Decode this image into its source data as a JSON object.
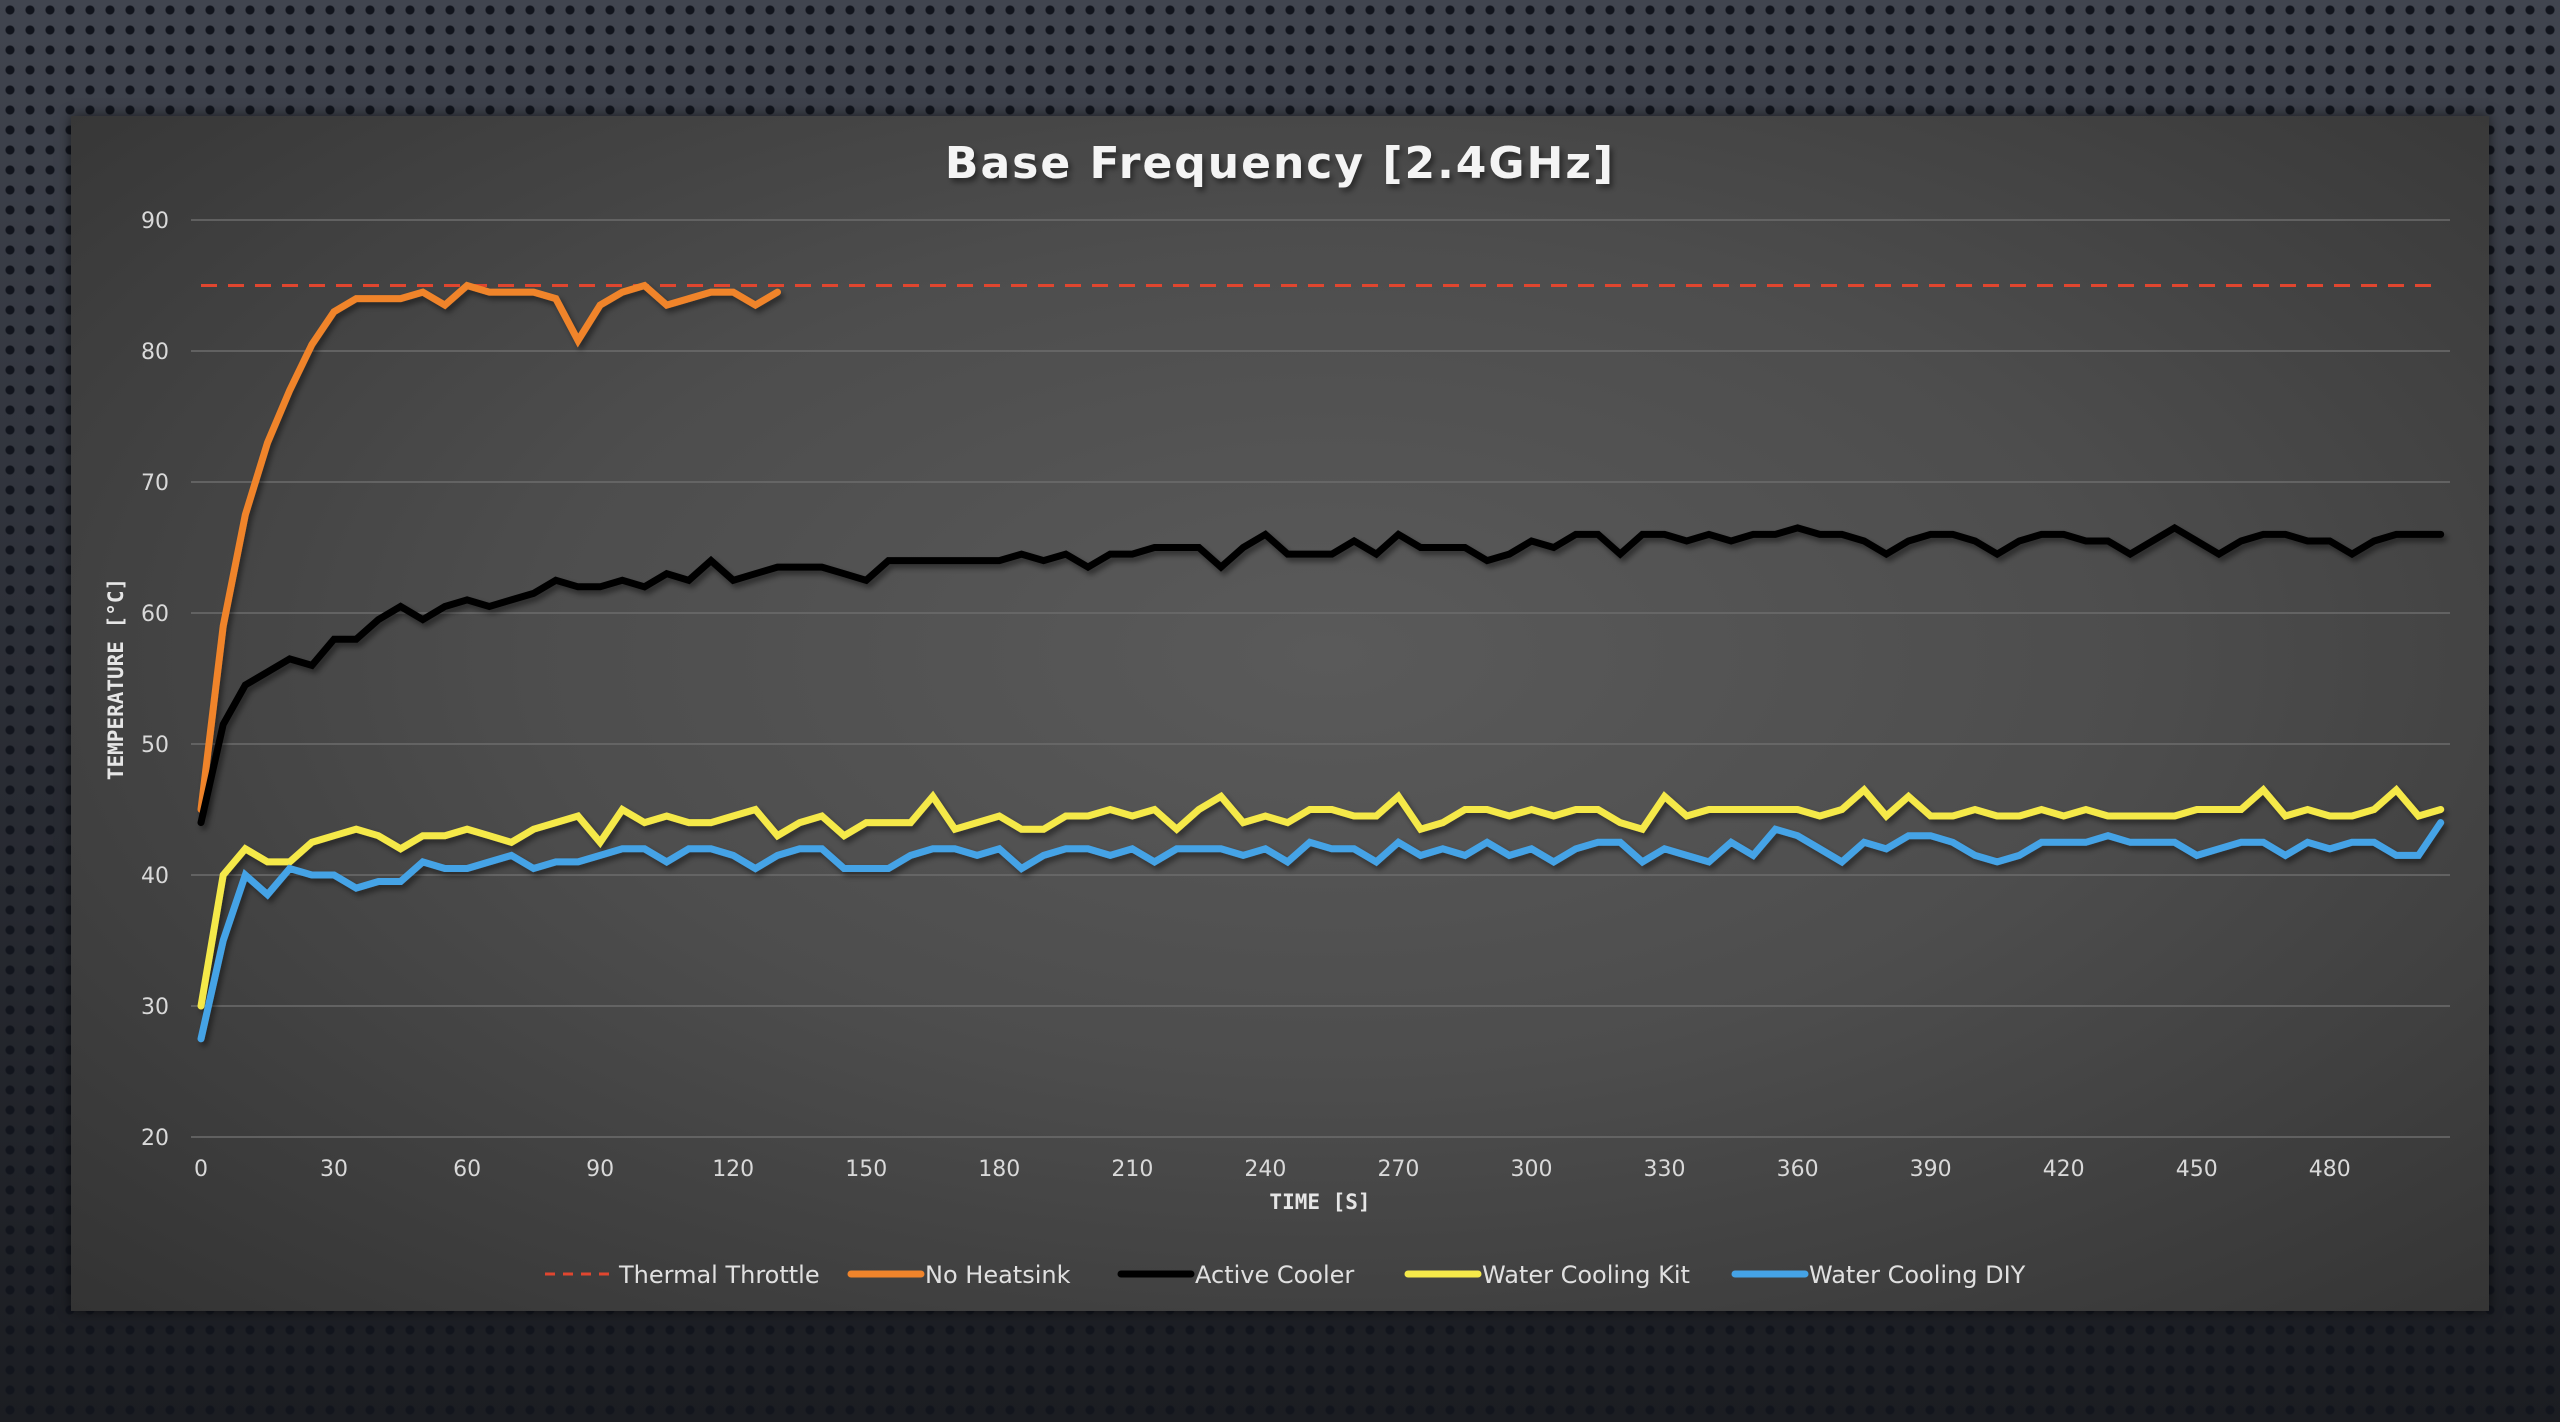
{
  "chart_data": {
    "type": "line",
    "title": "Base Frequency [2.4GHz]",
    "xlabel": "TIME [S]",
    "ylabel": "TEMPERATURE [°C]",
    "xlim": [
      0,
      505
    ],
    "ylim": [
      20,
      90
    ],
    "xticks": [
      0,
      30,
      60,
      90,
      120,
      150,
      180,
      210,
      240,
      270,
      300,
      330,
      360,
      390,
      420,
      450,
      480
    ],
    "yticks": [
      20,
      30,
      40,
      50,
      60,
      70,
      80,
      90
    ],
    "grid": true,
    "legend_position": "bottom",
    "x_step": 5,
    "series": [
      {
        "name": "Thermal Throttle",
        "color": "#e0462f",
        "style": "dashed",
        "values": [
          85,
          85
        ]
      },
      {
        "name": "No Heatsink",
        "color": "#f0842b",
        "style": "solid",
        "values": [
          45,
          59,
          67.5,
          73,
          77,
          80.5,
          83,
          84,
          84,
          84,
          84.5,
          83.5,
          85,
          84.5,
          84.5,
          84.5,
          84,
          80.8,
          83.5,
          84.5,
          85,
          83.5,
          84,
          84.5,
          84.5,
          83.5,
          84.5
        ]
      },
      {
        "name": "Active Cooler",
        "color": "#000000",
        "style": "solid",
        "values": [
          44,
          51.5,
          54.5,
          55.5,
          56.5,
          56,
          58,
          58,
          59.5,
          60.5,
          59.5,
          60.5,
          61,
          60.5,
          61,
          61.5,
          62.5,
          62,
          62,
          62.5,
          62,
          63,
          62.5,
          64,
          62.5,
          63,
          63.5,
          63.5,
          63.5,
          63,
          62.5,
          64,
          64,
          64,
          64,
          64,
          64,
          64.5,
          64,
          64.5,
          63.5,
          64.5,
          64.5,
          65,
          65,
          65,
          63.5,
          65,
          66,
          64.5,
          64.5,
          64.5,
          65.5,
          64.5,
          66,
          65,
          65,
          65,
          64,
          64.5,
          65.5,
          65,
          66,
          66,
          64.5,
          66,
          66,
          65.5,
          66,
          65.5,
          66,
          66,
          66.5,
          66,
          66,
          65.5,
          64.5,
          65.5,
          66,
          66,
          65.5,
          64.5,
          65.5,
          66,
          66,
          65.5,
          65.5,
          64.5,
          65.5,
          66.5,
          65.5,
          64.5,
          65.5,
          66,
          66,
          65.5,
          65.5,
          64.5,
          65.5,
          66,
          66,
          66
        ]
      },
      {
        "name": "Water Cooling Kit",
        "color": "#f5e94a",
        "style": "solid",
        "values": [
          30,
          40,
          42,
          41,
          41,
          42.5,
          43,
          43.5,
          43,
          42,
          43,
          43,
          43.5,
          43,
          42.5,
          43.5,
          44,
          44.5,
          42.5,
          45,
          44,
          44.5,
          44,
          44,
          44.5,
          45,
          43,
          44,
          44.5,
          43,
          44,
          44,
          44,
          46,
          43.5,
          44,
          44.5,
          43.5,
          43.5,
          44.5,
          44.5,
          45,
          44.5,
          45,
          43.5,
          45,
          46,
          44,
          44.5,
          44,
          45,
          45,
          44.5,
          44.5,
          46,
          43.5,
          44,
          45,
          45,
          44.5,
          45,
          44.5,
          45,
          45,
          44,
          43.5,
          46,
          44.5,
          45,
          45,
          45,
          45,
          45,
          44.5,
          45,
          46.5,
          44.5,
          46,
          44.5,
          44.5,
          45,
          44.5,
          44.5,
          45,
          44.5,
          45,
          44.5,
          44.5,
          44.5,
          44.5,
          45,
          45,
          45,
          46.5,
          44.5,
          45,
          44.5,
          44.5,
          45,
          46.5,
          44.5,
          45
        ]
      },
      {
        "name": "Water Cooling DIY",
        "color": "#45a3e6",
        "style": "solid",
        "values": [
          27.5,
          35,
          40,
          38.5,
          40.5,
          40,
          40,
          39,
          39.5,
          39.5,
          41,
          40.5,
          40.5,
          41,
          41.5,
          40.5,
          41,
          41,
          41.5,
          42,
          42,
          41,
          42,
          42,
          41.5,
          40.5,
          41.5,
          42,
          42,
          40.5,
          40.5,
          40.5,
          41.5,
          42,
          42,
          41.5,
          42,
          40.5,
          41.5,
          42,
          42,
          41.5,
          42,
          41,
          42,
          42,
          42,
          41.5,
          42,
          41,
          42.5,
          42,
          42,
          41,
          42.5,
          41.5,
          42,
          41.5,
          42.5,
          41.5,
          42,
          41,
          42,
          42.5,
          42.5,
          41,
          42,
          41.5,
          41,
          42.5,
          41.5,
          43.5,
          43,
          42,
          41,
          42.5,
          42,
          43,
          43,
          42.5,
          41.5,
          41,
          41.5,
          42.5,
          42.5,
          42.5,
          43,
          42.5,
          42.5,
          42.5,
          41.5,
          42,
          42.5,
          42.5,
          41.5,
          42.5,
          42,
          42.5,
          42.5,
          41.5,
          41.5,
          44
        ]
      }
    ]
  }
}
